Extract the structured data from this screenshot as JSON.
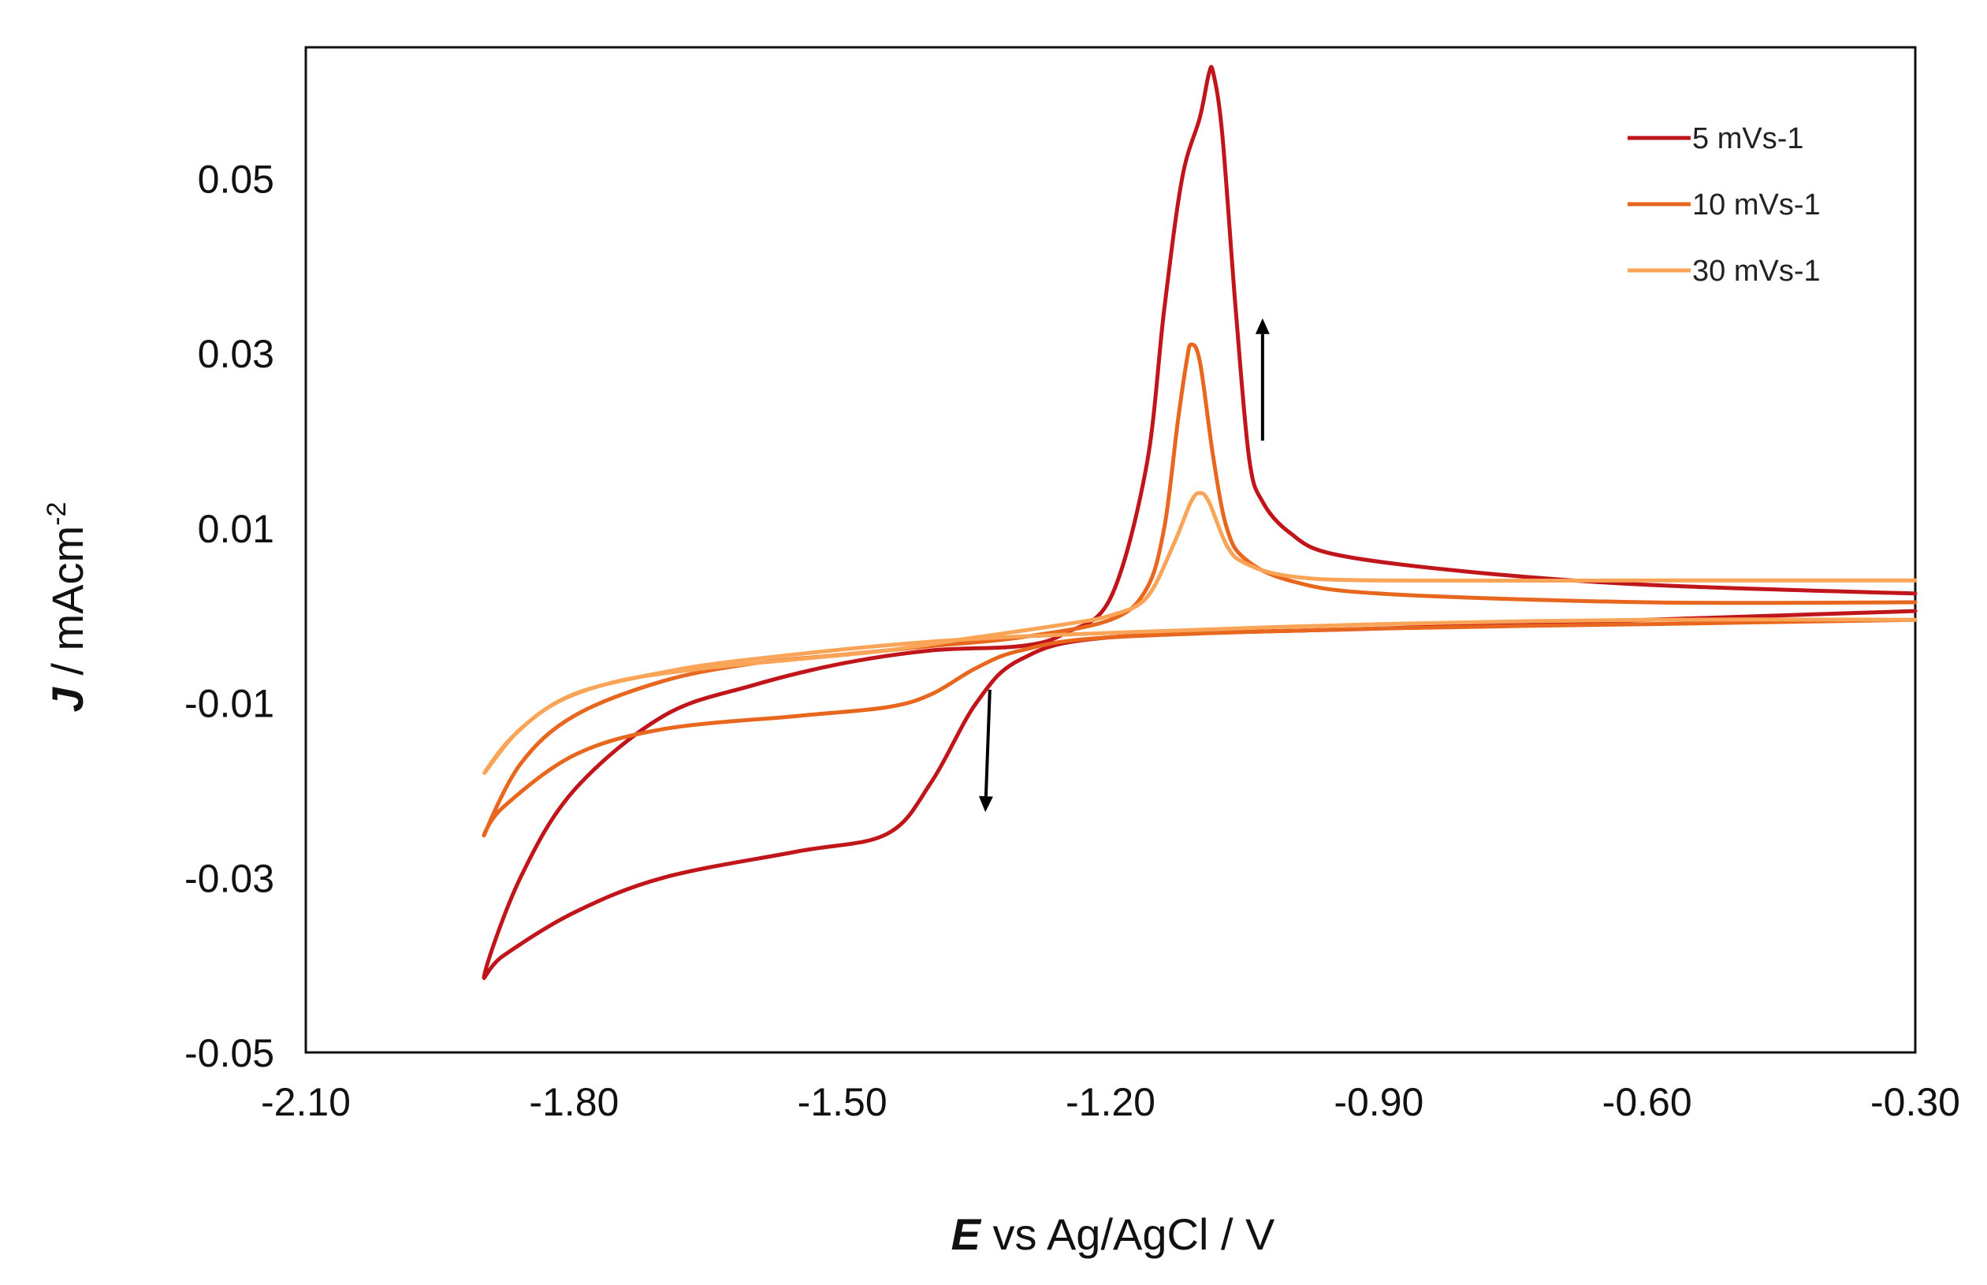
{
  "chart_data": {
    "type": "line",
    "title": "",
    "xlabel_symbol": "E",
    "xlabel_rest": " vs Ag/AgCl / V",
    "ylabel_symbol": "J",
    "ylabel_rest": " / mAcm",
    "ylabel_sup": "-2",
    "xlim": [
      -2.1,
      -0.3
    ],
    "ylim": [
      -0.05,
      0.065
    ],
    "xticks": [
      -2.1,
      -1.8,
      -1.5,
      -1.2,
      -0.9,
      -0.6,
      -0.3
    ],
    "xtick_labels": [
      "-2.10",
      "-1.80",
      "-1.50",
      "-1.20",
      "-0.90",
      "-0.60",
      "-0.30"
    ],
    "yticks": [
      -0.05,
      -0.03,
      -0.01,
      0.01,
      0.03,
      0.05
    ],
    "ytick_labels": [
      "-0.05",
      "-0.03",
      "-0.01",
      "0.01",
      "0.03",
      "0.05"
    ],
    "grid": false,
    "legend_position": "top-right",
    "series": [
      {
        "name": "5 mVs-1",
        "color": "#c0151b",
        "x": [
          -0.3,
          -0.6,
          -0.9,
          -1.2,
          -1.3,
          -1.35,
          -1.4,
          -1.45,
          -1.55,
          -1.7,
          -1.8,
          -1.88,
          -1.9,
          -1.86,
          -1.8,
          -1.7,
          -1.6,
          -1.5,
          -1.4,
          -1.3,
          -1.25,
          -1.2,
          -1.16,
          -1.14,
          -1.12,
          -1.1,
          -1.09,
          -1.085,
          -1.075,
          -1.06,
          -1.045,
          -1.03,
          -1.0,
          -0.95,
          -0.8,
          -0.6,
          -0.3
        ],
        "y": [
          0.0005,
          -0.0005,
          -0.0015,
          -0.0025,
          -0.005,
          -0.01,
          -0.019,
          -0.025,
          -0.027,
          -0.03,
          -0.034,
          -0.039,
          -0.041,
          -0.03,
          -0.02,
          -0.0115,
          -0.008,
          -0.0055,
          -0.004,
          -0.0035,
          -0.002,
          0.002,
          0.017,
          0.035,
          0.05,
          0.057,
          0.062,
          0.062,
          0.055,
          0.035,
          0.018,
          0.013,
          0.0095,
          0.007,
          0.005,
          0.0035,
          0.0025
        ]
      },
      {
        "name": "10 mVs-1",
        "color": "#e8671f",
        "x": [
          -0.3,
          -0.6,
          -0.9,
          -1.2,
          -1.3,
          -1.35,
          -1.4,
          -1.45,
          -1.55,
          -1.7,
          -1.8,
          -1.88,
          -1.9,
          -1.86,
          -1.8,
          -1.7,
          -1.6,
          -1.5,
          -1.4,
          -1.3,
          -1.2,
          -1.16,
          -1.14,
          -1.125,
          -1.115,
          -1.11,
          -1.1,
          -1.085,
          -1.07,
          -1.05,
          -1.0,
          -0.9,
          -0.6,
          -0.3
        ],
        "y": [
          -0.0005,
          -0.001,
          -0.0015,
          -0.0025,
          -0.004,
          -0.006,
          -0.009,
          -0.0105,
          -0.0115,
          -0.013,
          -0.016,
          -0.022,
          -0.025,
          -0.017,
          -0.0115,
          -0.0075,
          -0.0055,
          -0.0045,
          -0.0035,
          -0.0025,
          -0.0005,
          0.003,
          0.01,
          0.022,
          0.029,
          0.031,
          0.029,
          0.018,
          0.01,
          0.0065,
          0.004,
          0.0025,
          0.0015,
          0.0015
        ]
      },
      {
        "name": "30 mVs-1",
        "color": "#f9a456",
        "x": [
          -0.3,
          -0.6,
          -0.9,
          -1.2,
          -1.4,
          -1.6,
          -1.7,
          -1.8,
          -1.86,
          -1.9,
          -1.87,
          -1.82,
          -1.75,
          -1.65,
          -1.55,
          -1.45,
          -1.35,
          -1.25,
          -1.2,
          -1.16,
          -1.13,
          -1.11,
          -1.1,
          -1.09,
          -1.07,
          -1.05,
          -1.0,
          -0.9,
          -0.6,
          -0.3
        ],
        "y": [
          -0.0005,
          -0.0005,
          -0.001,
          -0.002,
          -0.003,
          -0.005,
          -0.0065,
          -0.009,
          -0.013,
          -0.018,
          -0.014,
          -0.01,
          -0.0075,
          -0.006,
          -0.005,
          -0.004,
          -0.0025,
          -0.001,
          0.0,
          0.002,
          0.008,
          0.013,
          0.014,
          0.013,
          0.008,
          0.006,
          0.0045,
          0.004,
          0.004,
          0.004
        ]
      }
    ],
    "annotations": [
      {
        "type": "arrow",
        "direction": "up",
        "from": [
          -1.03,
          0.02
        ],
        "to": [
          -1.03,
          0.034
        ]
      },
      {
        "type": "arrow",
        "direction": "down",
        "from": [
          -1.335,
          -0.0085
        ],
        "to": [
          -1.34,
          -0.0225
        ]
      }
    ]
  }
}
